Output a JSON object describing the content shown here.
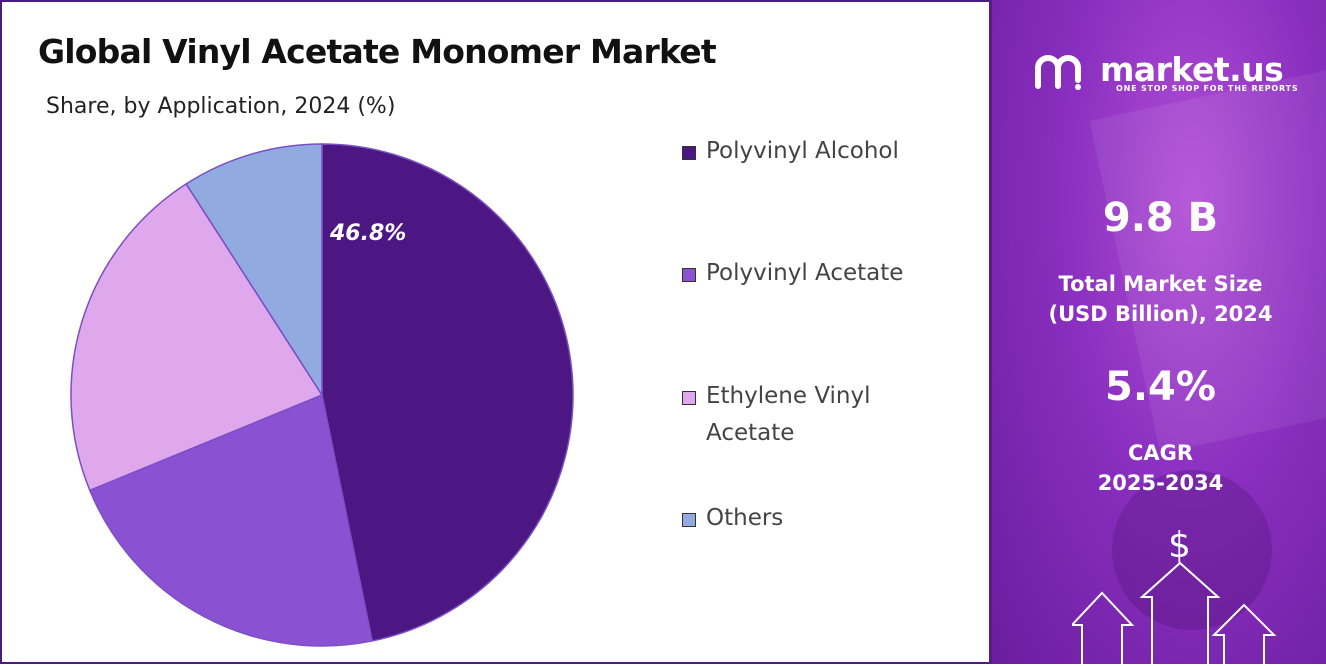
{
  "header": {
    "title": "Global Vinyl Acetate Monomer Market",
    "subtitle": "Share, by Application, 2024 (%)"
  },
  "chart_data": {
    "type": "pie",
    "categories": [
      "Polyvinyl Alcohol",
      "Polyvinyl Acetate",
      "Ethylene Vinyl Acetate",
      "Others"
    ],
    "values": [
      46.8,
      22.0,
      22.1,
      9.1
    ],
    "colors": [
      "#4d1783",
      "#8a52d2",
      "#dfa7ec",
      "#91aadf"
    ],
    "data_labels": [
      "46.8%",
      "",
      "",
      ""
    ],
    "start_angle_deg": 0,
    "direction": "clockwise"
  },
  "brand": {
    "name": "market.us",
    "tagline": "ONE STOP SHOP FOR THE REPORTS"
  },
  "stats": {
    "market_size_value": "9.8 B",
    "market_size_label_1": "Total Market Size",
    "market_size_label_2": "(USD Billion), 2024",
    "cagr_value": "5.4%",
    "cagr_label_1": "CAGR",
    "cagr_label_2": "2025-2034"
  },
  "icons": [
    "market-us-logo-icon",
    "dollar-icon",
    "up-arrow-icon"
  ]
}
